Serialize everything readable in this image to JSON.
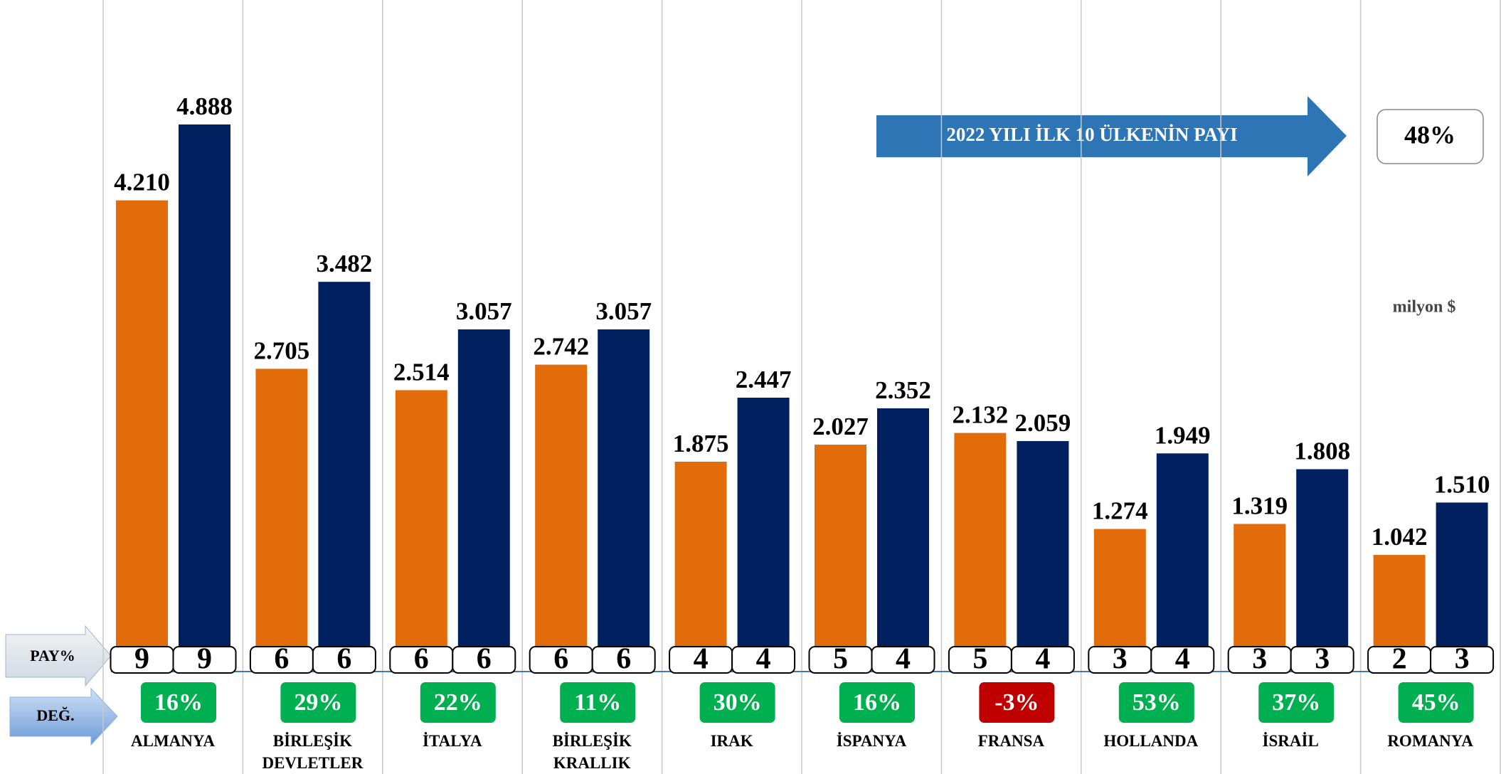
{
  "chart_data": {
    "type": "bar",
    "annotation": "2022 YILI İLK 10 ÜLKENİN PAYI",
    "annotation_value": 48,
    "annotation_value_label": "48%",
    "unit_label": "milyon $",
    "pay_label": "PAY%",
    "change_label": "DEĞ.",
    "categories": [
      "ALMANYA",
      "BİRLEŞİK DEVLETLER",
      "İTALYA",
      "BİRLEŞİK KRALLIK",
      "IRAK",
      "İSPANYA",
      "FRANSA",
      "HOLLANDA",
      "İSRAİL",
      "ROMANYA"
    ],
    "series": [
      {
        "color": "#e36c0a",
        "values": [
          4210,
          2705,
          2514,
          2742,
          1875,
          2027,
          2132,
          1274,
          1319,
          1042
        ],
        "value_labels": [
          "4.210",
          "2.705",
          "2.514",
          "2.742",
          "1.875",
          "2.027",
          "2.132",
          "1.274",
          "1.319",
          "1.042"
        ],
        "pay": [
          9,
          6,
          6,
          6,
          4,
          5,
          5,
          3,
          3,
          2
        ]
      },
      {
        "color": "#002060",
        "values": [
          4888,
          3482,
          3057,
          3057,
          2447,
          2352,
          2059,
          1949,
          1808,
          1510
        ],
        "value_labels": [
          "4.888",
          "3.482",
          "3.057",
          "3.057",
          "2.447",
          "2.352",
          "2.059",
          "1.949",
          "1.808",
          "1.510"
        ],
        "pay": [
          9,
          6,
          6,
          6,
          4,
          4,
          4,
          4,
          3,
          3
        ]
      }
    ],
    "change": [
      16,
      29,
      22,
      11,
      30,
      16,
      -3,
      53,
      37,
      45
    ],
    "change_labels": [
      "16%",
      "29%",
      "22%",
      "11%",
      "30%",
      "16%",
      "-3%",
      "53%",
      "37%",
      "45%"
    ],
    "ylim": [
      0,
      6000
    ]
  }
}
